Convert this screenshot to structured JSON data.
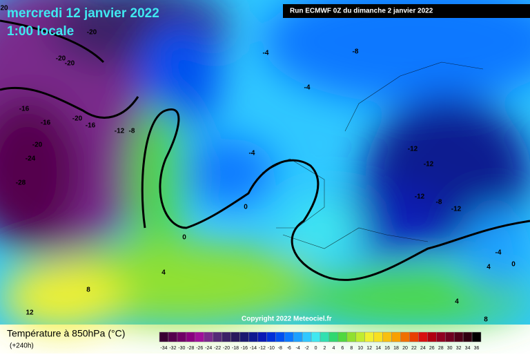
{
  "header": {
    "date": "mercredi 12 janvier 2022",
    "time": "1:00 locale",
    "run": "Run ECMWF 0Z du dimanche 2 janvier 2022"
  },
  "map": {
    "copyright": "Copyright 2022 Meteociel.fr",
    "labels": [
      "20",
      "-20",
      "-20",
      "-20",
      "-16",
      "-16",
      "-20",
      "-16",
      "-12",
      "-8",
      "-20",
      "-24",
      "-28",
      "-4",
      "-8",
      "-4",
      "-4",
      "-12",
      "-12",
      "-12",
      "-8",
      "-12",
      "0",
      "0",
      "4",
      "8",
      "12",
      "-4",
      "4",
      "0",
      "4",
      "8"
    ]
  },
  "footer": {
    "title": "Température à 850hPa (°C)",
    "lead": "(+240h)"
  },
  "scale": {
    "labels": [
      -34,
      -32,
      -30,
      -28,
      -26,
      -24,
      -22,
      -20,
      -18,
      -16,
      -14,
      -12,
      -10,
      -8,
      -6,
      -4,
      -2,
      0,
      2,
      4,
      6,
      8,
      10,
      12,
      14,
      16,
      18,
      20,
      22,
      24,
      26,
      28,
      30,
      32,
      34,
      36
    ],
    "colors": [
      "#3a0033",
      "#55004d",
      "#700066",
      "#8a0080",
      "#a0109a",
      "#7a2a8c",
      "#552a77",
      "#3b2266",
      "#2a1a5c",
      "#1b1a70",
      "#101a90",
      "#0a1ab5",
      "#0030d8",
      "#0050f0",
      "#0a78ff",
      "#1ca0ff",
      "#30c8ff",
      "#40e8f0",
      "#30e0b0",
      "#30d870",
      "#50d840",
      "#90e030",
      "#c0ec30",
      "#f0f030",
      "#f8e020",
      "#f8c010",
      "#f8a000",
      "#f07000",
      "#e84000",
      "#d81010",
      "#b00010",
      "#900020",
      "#700020",
      "#500018",
      "#300010",
      "#000000"
    ]
  }
}
